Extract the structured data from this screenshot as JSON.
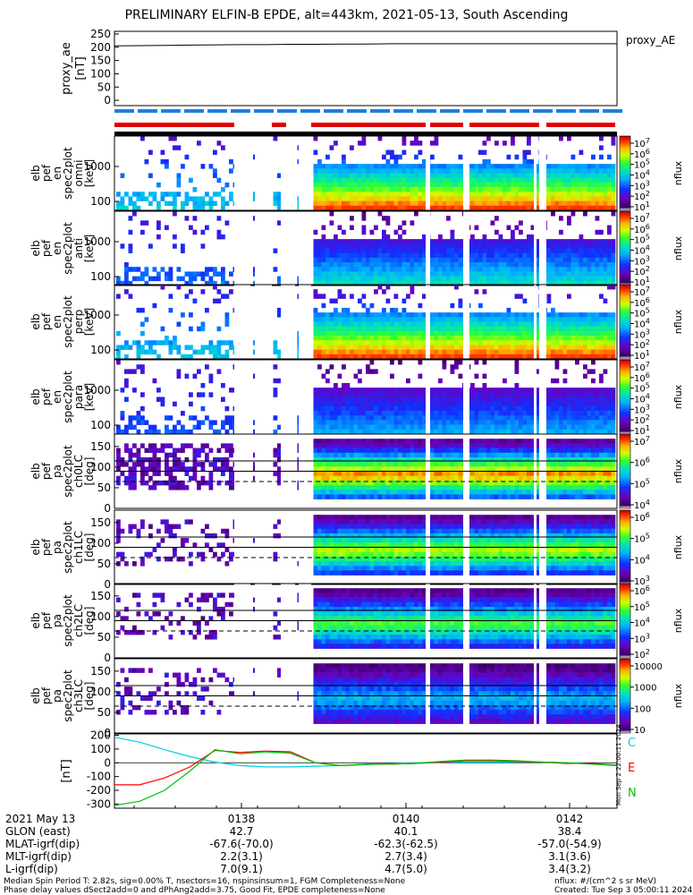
{
  "title": "PRELIMINARY ELFIN-B EPDE, alt=443km, 2021-05-13, South Ascending",
  "ae_panel": {
    "ylabel": "proxy_ae\n[nT]",
    "yticks": [
      "250",
      "200",
      "150",
      "100",
      "50",
      "0"
    ],
    "ylim": [
      -20,
      260
    ],
    "legend": "proxy_AE",
    "values": [
      205,
      206,
      207,
      208,
      209,
      210,
      210,
      211,
      211,
      212,
      212,
      213,
      213,
      213,
      213,
      213,
      213,
      213,
      213,
      213,
      213
    ]
  },
  "spectro_panels": [
    {
      "ylabel": [
        "elb",
        "pef",
        "en",
        "spec2plot",
        "omni",
        "[keV]"
      ],
      "yticks": [
        "1000",
        "100"
      ],
      "cb_ticks": [
        "10^7",
        "10^6",
        "10^5",
        "10^4",
        "10^3",
        "10^2",
        "10^1"
      ],
      "cb_label": "nflux",
      "kind": "energy",
      "level": 1.0
    },
    {
      "ylabel": [
        "elb",
        "pef",
        "en",
        "spec2plot",
        "anti",
        "[keV]"
      ],
      "yticks": [
        "1000",
        "100"
      ],
      "cb_ticks": [
        "10^7",
        "10^6",
        "10^5",
        "10^4",
        "10^3",
        "10^2",
        "10^1"
      ],
      "cb_label": "nflux",
      "kind": "energy",
      "level": 0.55
    },
    {
      "ylabel": [
        "elb",
        "pef",
        "en",
        "spec2plot",
        "perp",
        "[keV]"
      ],
      "yticks": [
        "1000",
        "100"
      ],
      "cb_ticks": [
        "10^7",
        "10^6",
        "10^5",
        "10^4",
        "10^3",
        "10^2",
        "10^1"
      ],
      "cb_label": "nflux",
      "kind": "energy",
      "level": 1.0
    },
    {
      "ylabel": [
        "elb",
        "pef",
        "en",
        "spec2plot",
        "para",
        "[keV]"
      ],
      "yticks": [
        "1000",
        "100"
      ],
      "cb_ticks": [
        "10^7",
        "10^6",
        "10^5",
        "10^4",
        "10^3",
        "10^2",
        "10^1"
      ],
      "cb_label": "nflux",
      "kind": "energy",
      "level": 0.45
    },
    {
      "ylabel": [
        "elb",
        "pef",
        "pa",
        "spec2plot",
        "ch0LC",
        "[deg]"
      ],
      "yticks": [
        "150",
        "100",
        "50",
        "0"
      ],
      "cb_ticks": [
        "10^7",
        "10^6",
        "10^5",
        "10^4"
      ],
      "cb_label": "nflux",
      "kind": "pa",
      "level": 1.0
    },
    {
      "ylabel": [
        "elb",
        "pef",
        "pa",
        "spec2plot",
        "ch1LC",
        "[deg]"
      ],
      "yticks": [
        "150",
        "100",
        "50",
        "0"
      ],
      "cb_ticks": [
        "10^6",
        "10^5",
        "10^4",
        "10^3"
      ],
      "cb_label": "nflux",
      "kind": "pa",
      "level": 0.85
    },
    {
      "ylabel": [
        "elb",
        "pef",
        "pa",
        "spec2plot",
        "ch2LC",
        "[deg]"
      ],
      "yticks": [
        "150",
        "100",
        "50",
        "0"
      ],
      "cb_ticks": [
        "10^6",
        "10^5",
        "10^4",
        "10^3",
        "10^2"
      ],
      "cb_label": "nflux",
      "kind": "pa",
      "level": 0.75
    },
    {
      "ylabel": [
        "elb",
        "pef",
        "pa",
        "spec2plot",
        "ch3LC",
        "[deg]"
      ],
      "yticks": [
        "150",
        "100",
        "50",
        "0"
      ],
      "cb_ticks": [
        "10000",
        "1000",
        "100",
        "10"
      ],
      "cb_label": "nflux",
      "kind": "pa",
      "level": 0.5
    }
  ],
  "chart_data": {
    "type": "line",
    "title": "PRELIMINARY ELFIN-B EPDE, alt=443km, 2021-05-13, South Ascending",
    "ylabel": "[nT]",
    "yticks": [
      "200",
      "100",
      "0",
      "-100",
      "-200",
      "-300"
    ],
    "ylim": [
      -330,
      210
    ],
    "x": [
      0,
      0.05,
      0.1,
      0.15,
      0.2,
      0.25,
      0.3,
      0.35,
      0.4,
      0.45,
      0.5,
      0.55,
      0.6,
      0.65,
      0.7,
      0.75,
      0.8,
      0.85,
      0.9,
      0.95,
      1.0
    ],
    "series": [
      {
        "name": "C",
        "color": "#00d0e0",
        "values": [
          185,
          150,
          95,
          45,
          5,
          -20,
          -30,
          -30,
          -25,
          -20,
          -15,
          -5,
          0,
          5,
          5,
          5,
          5,
          5,
          0,
          -5,
          -15
        ]
      },
      {
        "name": "E",
        "color": "#ff0000",
        "values": [
          -160,
          -160,
          -110,
          -30,
          90,
          75,
          85,
          80,
          0,
          -20,
          -10,
          -10,
          -5,
          5,
          15,
          15,
          10,
          5,
          -5,
          -5,
          -20
        ]
      },
      {
        "name": "N",
        "color": "#00c000",
        "values": [
          -310,
          -280,
          -200,
          -60,
          95,
          65,
          80,
          70,
          0,
          -20,
          -10,
          -10,
          -5,
          10,
          20,
          20,
          15,
          5,
          0,
          -10,
          -20
        ]
      }
    ]
  },
  "ephemeris": {
    "date_label": "2021 May 13",
    "rows": [
      "GLON (east)",
      "MLAT-igrf(dip)",
      "MLT-igrf(dip)",
      "L-igrf(dip)"
    ],
    "columns": [
      {
        "time": "0138",
        "values": [
          "42.7",
          "-67.6(-70.0)",
          "2.2(3.1)",
          "7.0(9.1)"
        ]
      },
      {
        "time": "0140",
        "values": [
          "40.1",
          "-62.3(-62.5)",
          "2.7(3.4)",
          "4.7(5.0)"
        ]
      },
      {
        "time": "0142",
        "values": [
          "38.4",
          "-57.0(-54.9)",
          "3.1(3.6)",
          "3.4(3.2)"
        ]
      }
    ]
  },
  "notes": {
    "line1": "Median Spin Period T: 2.82s, sig=0.00% T, nsectors=16, nspinsinsum=1, FGM Completeness=None",
    "line2": "Phase delay values dSect2add=0 and dPhAng2add=3.75, Good Fit, EPDE completeness=None",
    "units": "nflux: #/(cm^2 s sr MeV)",
    "created": "Created: Tue Sep  3 05:00:11 2024",
    "side_stamp": "Mon Sep  2 22:00:11 2024"
  },
  "colors": {
    "accent_red": "#e00000",
    "accent_blue": "#1e7fe0",
    "axis": "#000000"
  }
}
